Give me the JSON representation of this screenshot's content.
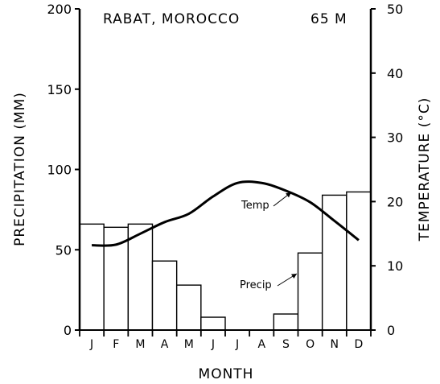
{
  "chart_data": {
    "type": "bar",
    "title": "RABAT, MOROCCO",
    "elevation": "65 M",
    "xlabel": "MONTH",
    "ylabel_left": "PRECIPITATION (MM)",
    "ylabel_right": "TEMPERATURE (°C)",
    "ylim_left": [
      0,
      200
    ],
    "ylim_right": [
      0,
      50
    ],
    "yticks_left": [
      "0",
      "50",
      "100",
      "150",
      "200"
    ],
    "yticks_right": [
      "0",
      "10",
      "20",
      "30",
      "40",
      "50"
    ],
    "categories": [
      "J",
      "F",
      "M",
      "A",
      "M",
      "J",
      "J",
      "A",
      "S",
      "O",
      "N",
      "D"
    ],
    "series": [
      {
        "name": "Precip",
        "kind": "bar",
        "axis": "left",
        "values": [
          66,
          64,
          66,
          43,
          28,
          8,
          0,
          0,
          10,
          48,
          84,
          86
        ]
      },
      {
        "name": "Temp",
        "kind": "line",
        "axis": "right",
        "values": [
          13.2,
          13.3,
          15.0,
          16.8,
          18.1,
          20.8,
          22.9,
          22.9,
          21.7,
          19.9,
          17.0,
          14.0
        ]
      }
    ],
    "annotations": [
      "Temp",
      "Precip"
    ],
    "grid": false,
    "legend": "none"
  }
}
